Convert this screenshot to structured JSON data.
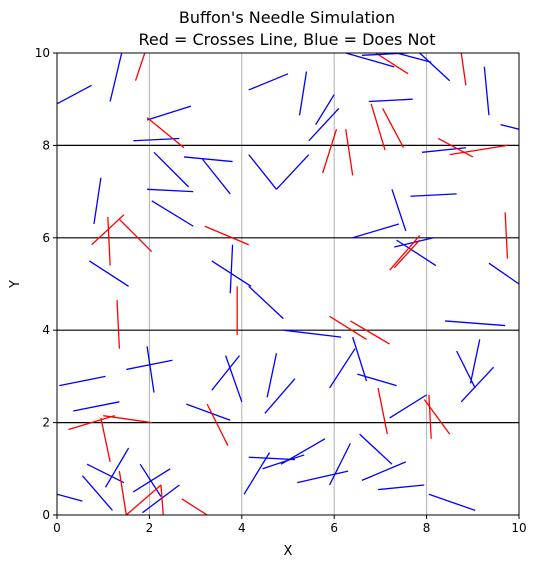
{
  "chart_data": {
    "type": "line",
    "title": "Buffon's Needle Simulation",
    "subtitle": "Red = Crosses Line, Blue = Does Not",
    "xlabel": "X",
    "ylabel": "Y",
    "xlim": [
      0,
      10
    ],
    "ylim": [
      0,
      10
    ],
    "xticks": [
      "0",
      "2",
      "4",
      "6",
      "8",
      "10"
    ],
    "yticks": [
      "0",
      "2",
      "4",
      "6",
      "8",
      "10"
    ],
    "vertical_gridlines_x": [
      2,
      4,
      6,
      8
    ],
    "horizontal_lines_y": [
      2,
      4,
      6,
      8
    ],
    "colors": {
      "crosses": "#ff0000",
      "no_cross": "#0000ff",
      "horizontal_line": "#000000",
      "vertical_grid": "#b0b0b0"
    },
    "needles": [
      {
        "x1": 0.0,
        "y1": 8.9,
        "x2": 0.75,
        "y2": 9.3,
        "crosses": false
      },
      {
        "x1": 1.15,
        "y1": 8.95,
        "x2": 1.4,
        "y2": 10.0,
        "crosses": false
      },
      {
        "x1": 1.7,
        "y1": 9.4,
        "x2": 1.9,
        "y2": 10.0,
        "crosses": true
      },
      {
        "x1": 1.65,
        "y1": 8.1,
        "x2": 2.65,
        "y2": 8.15,
        "crosses": false
      },
      {
        "x1": 1.95,
        "y1": 8.55,
        "x2": 2.9,
        "y2": 8.85,
        "crosses": false
      },
      {
        "x1": 1.95,
        "y1": 8.6,
        "x2": 2.75,
        "y2": 7.95,
        "crosses": true
      },
      {
        "x1": 2.1,
        "y1": 7.85,
        "x2": 2.85,
        "y2": 7.1,
        "crosses": false
      },
      {
        "x1": 1.95,
        "y1": 7.05,
        "x2": 2.95,
        "y2": 7.0,
        "crosses": false
      },
      {
        "x1": 2.75,
        "y1": 7.75,
        "x2": 3.8,
        "y2": 7.65,
        "crosses": false
      },
      {
        "x1": 3.15,
        "y1": 7.7,
        "x2": 3.75,
        "y2": 6.95,
        "crosses": false
      },
      {
        "x1": 2.05,
        "y1": 6.8,
        "x2": 2.95,
        "y2": 6.25,
        "crosses": false
      },
      {
        "x1": 0.8,
        "y1": 6.3,
        "x2": 0.95,
        "y2": 7.3,
        "crosses": false
      },
      {
        "x1": 0.75,
        "y1": 5.85,
        "x2": 1.45,
        "y2": 6.5,
        "crosses": true
      },
      {
        "x1": 1.1,
        "y1": 6.45,
        "x2": 1.15,
        "y2": 5.4,
        "crosses": true
      },
      {
        "x1": 1.35,
        "y1": 6.4,
        "x2": 2.05,
        "y2": 5.7,
        "crosses": true
      },
      {
        "x1": 0.7,
        "y1": 5.5,
        "x2": 1.55,
        "y2": 4.95,
        "crosses": false
      },
      {
        "x1": 3.2,
        "y1": 6.25,
        "x2": 4.15,
        "y2": 5.85,
        "crosses": true
      },
      {
        "x1": 3.35,
        "y1": 5.5,
        "x2": 4.2,
        "y2": 4.95,
        "crosses": false
      },
      {
        "x1": 3.8,
        "y1": 5.85,
        "x2": 3.75,
        "y2": 4.8,
        "crosses": false
      },
      {
        "x1": 4.15,
        "y1": 4.95,
        "x2": 4.9,
        "y2": 4.25,
        "crosses": false
      },
      {
        "x1": 3.9,
        "y1": 4.95,
        "x2": 3.9,
        "y2": 3.9,
        "crosses": true
      },
      {
        "x1": 1.3,
        "y1": 4.65,
        "x2": 1.35,
        "y2": 3.6,
        "crosses": true
      },
      {
        "x1": 4.15,
        "y1": 9.2,
        "x2": 5.0,
        "y2": 9.55,
        "crosses": false
      },
      {
        "x1": 5.25,
        "y1": 8.65,
        "x2": 5.4,
        "y2": 9.6,
        "crosses": false
      },
      {
        "x1": 4.15,
        "y1": 7.8,
        "x2": 4.75,
        "y2": 7.05,
        "crosses": false
      },
      {
        "x1": 4.75,
        "y1": 7.05,
        "x2": 5.45,
        "y2": 7.8,
        "crosses": false
      },
      {
        "x1": 5.45,
        "y1": 8.1,
        "x2": 6.1,
        "y2": 8.8,
        "crosses": false
      },
      {
        "x1": 5.6,
        "y1": 8.45,
        "x2": 6.0,
        "y2": 9.1,
        "crosses": false
      },
      {
        "x1": 5.75,
        "y1": 7.4,
        "x2": 6.05,
        "y2": 8.35,
        "crosses": true
      },
      {
        "x1": 6.25,
        "y1": 8.35,
        "x2": 6.4,
        "y2": 7.35,
        "crosses": true
      },
      {
        "x1": 6.25,
        "y1": 10.0,
        "x2": 7.3,
        "y2": 9.7,
        "crosses": false
      },
      {
        "x1": 6.9,
        "y1": 10.0,
        "x2": 7.6,
        "y2": 9.55,
        "crosses": true
      },
      {
        "x1": 6.6,
        "y1": 9.95,
        "x2": 7.6,
        "y2": 10.0,
        "crosses": false
      },
      {
        "x1": 7.35,
        "y1": 10.0,
        "x2": 8.1,
        "y2": 9.8,
        "crosses": false
      },
      {
        "x1": 7.85,
        "y1": 10.0,
        "x2": 8.5,
        "y2": 9.4,
        "crosses": false
      },
      {
        "x1": 8.75,
        "y1": 10.0,
        "x2": 8.85,
        "y2": 9.3,
        "crosses": true
      },
      {
        "x1": 6.75,
        "y1": 8.95,
        "x2": 7.7,
        "y2": 9.0,
        "crosses": false
      },
      {
        "x1": 6.8,
        "y1": 8.9,
        "x2": 7.1,
        "y2": 7.9,
        "crosses": true
      },
      {
        "x1": 7.05,
        "y1": 8.8,
        "x2": 7.5,
        "y2": 7.95,
        "crosses": true
      },
      {
        "x1": 7.9,
        "y1": 7.85,
        "x2": 8.85,
        "y2": 7.95,
        "crosses": false
      },
      {
        "x1": 8.25,
        "y1": 8.15,
        "x2": 9.0,
        "y2": 7.75,
        "crosses": true
      },
      {
        "x1": 8.5,
        "y1": 7.8,
        "x2": 9.75,
        "y2": 8.0,
        "crosses": true
      },
      {
        "x1": 9.25,
        "y1": 9.7,
        "x2": 9.35,
        "y2": 8.65,
        "crosses": false
      },
      {
        "x1": 9.6,
        "y1": 8.45,
        "x2": 10.0,
        "y2": 8.35,
        "crosses": false
      },
      {
        "x1": 7.25,
        "y1": 7.05,
        "x2": 7.55,
        "y2": 6.15,
        "crosses": false
      },
      {
        "x1": 7.65,
        "y1": 6.9,
        "x2": 8.65,
        "y2": 6.95,
        "crosses": false
      },
      {
        "x1": 6.4,
        "y1": 6.0,
        "x2": 7.4,
        "y2": 6.3,
        "crosses": false
      },
      {
        "x1": 7.3,
        "y1": 5.8,
        "x2": 8.15,
        "y2": 6.0,
        "crosses": false
      },
      {
        "x1": 7.35,
        "y1": 5.95,
        "x2": 8.2,
        "y2": 5.4,
        "crosses": false
      },
      {
        "x1": 7.2,
        "y1": 5.3,
        "x2": 7.85,
        "y2": 6.05,
        "crosses": true
      },
      {
        "x1": 7.3,
        "y1": 5.35,
        "x2": 7.85,
        "y2": 5.95,
        "crosses": true
      },
      {
        "x1": 9.7,
        "y1": 6.55,
        "x2": 9.75,
        "y2": 5.55,
        "crosses": true
      },
      {
        "x1": 9.35,
        "y1": 5.45,
        "x2": 10.0,
        "y2": 5.0,
        "crosses": false
      },
      {
        "x1": 5.9,
        "y1": 4.3,
        "x2": 6.7,
        "y2": 3.8,
        "crosses": true
      },
      {
        "x1": 6.35,
        "y1": 4.2,
        "x2": 7.2,
        "y2": 3.7,
        "crosses": true
      },
      {
        "x1": 4.9,
        "y1": 4.0,
        "x2": 6.15,
        "y2": 3.85,
        "crosses": false
      },
      {
        "x1": 5.9,
        "y1": 2.75,
        "x2": 6.45,
        "y2": 3.6,
        "crosses": false
      },
      {
        "x1": 6.4,
        "y1": 3.85,
        "x2": 6.7,
        "y2": 2.9,
        "crosses": false
      },
      {
        "x1": 6.5,
        "y1": 3.05,
        "x2": 7.35,
        "y2": 2.8,
        "crosses": false
      },
      {
        "x1": 8.4,
        "y1": 4.2,
        "x2": 9.7,
        "y2": 4.1,
        "crosses": false
      },
      {
        "x1": 8.65,
        "y1": 3.55,
        "x2": 9.05,
        "y2": 2.75,
        "crosses": false
      },
      {
        "x1": 8.95,
        "y1": 2.85,
        "x2": 9.15,
        "y2": 3.8,
        "crosses": false
      },
      {
        "x1": 8.75,
        "y1": 2.45,
        "x2": 9.45,
        "y2": 3.2,
        "crosses": false
      },
      {
        "x1": 6.95,
        "y1": 2.75,
        "x2": 7.15,
        "y2": 1.75,
        "crosses": true
      },
      {
        "x1": 7.2,
        "y1": 2.1,
        "x2": 8.0,
        "y2": 2.6,
        "crosses": false
      },
      {
        "x1": 7.95,
        "y1": 2.5,
        "x2": 8.5,
        "y2": 1.75,
        "crosses": true
      },
      {
        "x1": 8.05,
        "y1": 2.6,
        "x2": 8.1,
        "y2": 1.65,
        "crosses": true
      },
      {
        "x1": 0.05,
        "y1": 2.8,
        "x2": 1.05,
        "y2": 3.0,
        "crosses": false
      },
      {
        "x1": 0.35,
        "y1": 2.25,
        "x2": 1.35,
        "y2": 2.45,
        "crosses": false
      },
      {
        "x1": 1.5,
        "y1": 3.15,
        "x2": 2.5,
        "y2": 3.35,
        "crosses": false
      },
      {
        "x1": 1.95,
        "y1": 3.65,
        "x2": 2.1,
        "y2": 2.65,
        "crosses": false
      },
      {
        "x1": 2.8,
        "y1": 2.4,
        "x2": 3.75,
        "y2": 2.05,
        "crosses": false
      },
      {
        "x1": 3.35,
        "y1": 2.7,
        "x2": 3.95,
        "y2": 3.45,
        "crosses": false
      },
      {
        "x1": 3.65,
        "y1": 3.45,
        "x2": 4.0,
        "y2": 2.45,
        "crosses": false
      },
      {
        "x1": 4.55,
        "y1": 2.55,
        "x2": 4.75,
        "y2": 3.5,
        "crosses": false
      },
      {
        "x1": 4.5,
        "y1": 2.2,
        "x2": 5.15,
        "y2": 2.95,
        "crosses": false
      },
      {
        "x1": 3.25,
        "y1": 2.4,
        "x2": 3.7,
        "y2": 1.5,
        "crosses": true
      },
      {
        "x1": 0.25,
        "y1": 1.85,
        "x2": 1.25,
        "y2": 2.15,
        "crosses": true
      },
      {
        "x1": 1.0,
        "y1": 2.15,
        "x2": 2.05,
        "y2": 2.0,
        "crosses": true
      },
      {
        "x1": 0.95,
        "y1": 2.1,
        "x2": 1.15,
        "y2": 1.15,
        "crosses": true
      },
      {
        "x1": 0.0,
        "y1": 0.45,
        "x2": 0.55,
        "y2": 0.3,
        "crosses": false
      },
      {
        "x1": 0.55,
        "y1": 0.85,
        "x2": 1.2,
        "y2": 0.1,
        "crosses": false
      },
      {
        "x1": 0.65,
        "y1": 1.1,
        "x2": 1.45,
        "y2": 0.7,
        "crosses": false
      },
      {
        "x1": 1.05,
        "y1": 0.6,
        "x2": 1.55,
        "y2": 1.45,
        "crosses": false
      },
      {
        "x1": 1.35,
        "y1": 0.95,
        "x2": 1.5,
        "y2": 0.0,
        "crosses": true
      },
      {
        "x1": 1.65,
        "y1": 0.5,
        "x2": 2.45,
        "y2": 1.0,
        "crosses": false
      },
      {
        "x1": 1.8,
        "y1": 1.1,
        "x2": 2.25,
        "y2": 0.4,
        "crosses": false
      },
      {
        "x1": 1.85,
        "y1": 0.05,
        "x2": 2.65,
        "y2": 0.65,
        "crosses": false
      },
      {
        "x1": 1.5,
        "y1": 0.0,
        "x2": 2.25,
        "y2": 0.65,
        "crosses": true
      },
      {
        "x1": 2.25,
        "y1": 0.65,
        "x2": 2.3,
        "y2": 0.0,
        "crosses": true
      },
      {
        "x1": 2.7,
        "y1": 0.35,
        "x2": 3.25,
        "y2": 0.0,
        "crosses": true
      },
      {
        "x1": 4.15,
        "y1": 1.25,
        "x2": 5.15,
        "y2": 1.2,
        "crosses": false
      },
      {
        "x1": 4.05,
        "y1": 0.45,
        "x2": 4.6,
        "y2": 1.35,
        "crosses": false
      },
      {
        "x1": 4.45,
        "y1": 1.0,
        "x2": 5.35,
        "y2": 1.3,
        "crosses": false
      },
      {
        "x1": 4.85,
        "y1": 1.1,
        "x2": 5.8,
        "y2": 1.65,
        "crosses": false
      },
      {
        "x1": 5.2,
        "y1": 0.7,
        "x2": 6.3,
        "y2": 0.95,
        "crosses": false
      },
      {
        "x1": 5.9,
        "y1": 0.65,
        "x2": 6.35,
        "y2": 1.55,
        "crosses": false
      },
      {
        "x1": 6.55,
        "y1": 1.75,
        "x2": 7.25,
        "y2": 1.1,
        "crosses": false
      },
      {
        "x1": 6.6,
        "y1": 0.75,
        "x2": 7.55,
        "y2": 1.15,
        "crosses": false
      },
      {
        "x1": 6.95,
        "y1": 0.55,
        "x2": 7.95,
        "y2": 0.65,
        "crosses": false
      },
      {
        "x1": 8.05,
        "y1": 0.45,
        "x2": 9.05,
        "y2": 0.1,
        "crosses": false
      }
    ]
  }
}
